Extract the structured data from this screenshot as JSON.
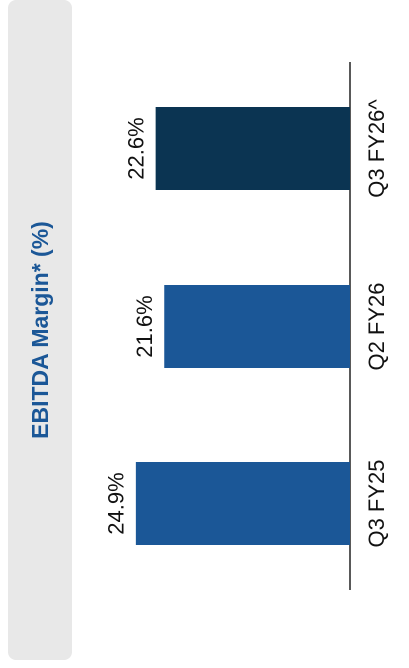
{
  "chart_data": {
    "type": "bar",
    "title": "EBITDA Margin* (%)",
    "categories": [
      "Q3 FY25",
      "Q2 FY26",
      "Q3 FY26^"
    ],
    "values": [
      24.9,
      21.6,
      22.6
    ],
    "value_labels": [
      "24.9%",
      "21.6%",
      "22.6%"
    ],
    "colors": [
      "#1b5797",
      "#1b5797",
      "#0b3452"
    ]
  }
}
